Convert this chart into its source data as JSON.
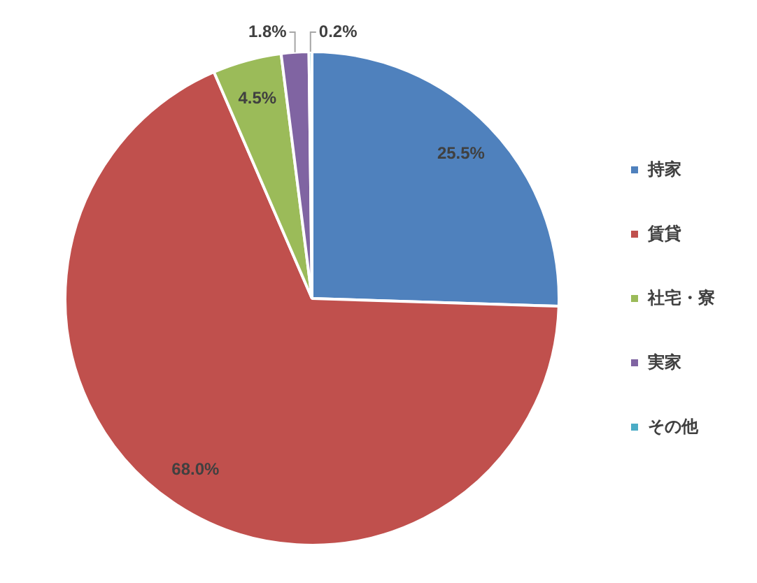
{
  "chart_data": {
    "type": "pie",
    "categories": [
      "持家",
      "賃貸",
      "社宅・寮",
      "実家",
      "その他"
    ],
    "values": [
      25.5,
      68.0,
      4.5,
      1.8,
      0.2
    ],
    "colors": [
      "#4f81bd",
      "#c0504d",
      "#9bbb59",
      "#8064a2",
      "#4bacc6"
    ],
    "value_labels": [
      "25.5%",
      "68.0%",
      "4.5%",
      "1.8%",
      "0.2%"
    ],
    "legend": "right"
  }
}
